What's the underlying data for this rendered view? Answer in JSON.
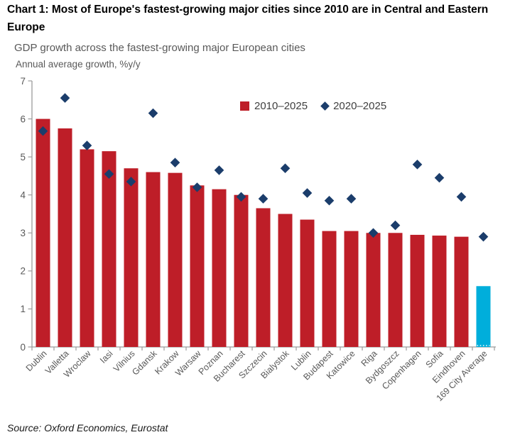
{
  "header": {
    "title": "Chart 1: Most of Europe's fastest-growing major cities since 2010 are in Central and Eastern Europe",
    "subtitle": "GDP growth across the fastest-growing major European cities",
    "units": "Annual average growth, %y/y"
  },
  "source": "Source: Oxford Economics, Eurostat",
  "colors": {
    "bar_red": "#BE1E28",
    "diamond_navy": "#1B3D6B",
    "highlight_blue": "#00AEDB",
    "axis_gray": "#9C9C9C",
    "tick_label_gray": "#595959"
  },
  "chart_data": {
    "type": "bar",
    "title": "GDP growth across the fastest-growing major European cities",
    "ylabel": "Annual average growth, %y/y",
    "xlabel": "",
    "ylim": [
      0,
      7
    ],
    "yticks": [
      0,
      1,
      2,
      3,
      4,
      5,
      6,
      7
    ],
    "grid": false,
    "legend_position": "top-center-inside",
    "categories": [
      "Dublin",
      "Valletta",
      "Wroclaw",
      "Iasi",
      "Vilnius",
      "Gdansk",
      "Krakow",
      "Warsaw",
      "Poznan",
      "Bucharest",
      "Szczecin",
      "Bialystok",
      "Lublin",
      "Budapest",
      "Katowice",
      "Riga",
      "Bydgoszcz",
      "Copenhagen",
      "Sofia",
      "Eindhoven",
      "169 City Average"
    ],
    "series": [
      {
        "name": "2010–2025",
        "type": "bar",
        "color": "#BE1E28",
        "values": [
          6.0,
          5.75,
          5.2,
          5.15,
          4.7,
          4.6,
          4.58,
          4.25,
          4.15,
          4.0,
          3.65,
          3.5,
          3.35,
          3.05,
          3.05,
          3.0,
          3.0,
          2.95,
          2.93,
          2.9,
          1.6
        ]
      },
      {
        "name": "2020–2025",
        "type": "scatter",
        "marker": "diamond",
        "color": "#1B3D6B",
        "values": [
          5.68,
          6.55,
          5.3,
          4.55,
          4.35,
          6.15,
          4.85,
          4.2,
          4.65,
          3.95,
          3.9,
          4.7,
          4.05,
          3.85,
          3.9,
          3.0,
          3.2,
          4.8,
          4.45,
          3.95,
          2.9
        ]
      }
    ],
    "highlight": {
      "category": "169 City Average",
      "index": 20,
      "bar_color": "#00AEDB"
    }
  }
}
